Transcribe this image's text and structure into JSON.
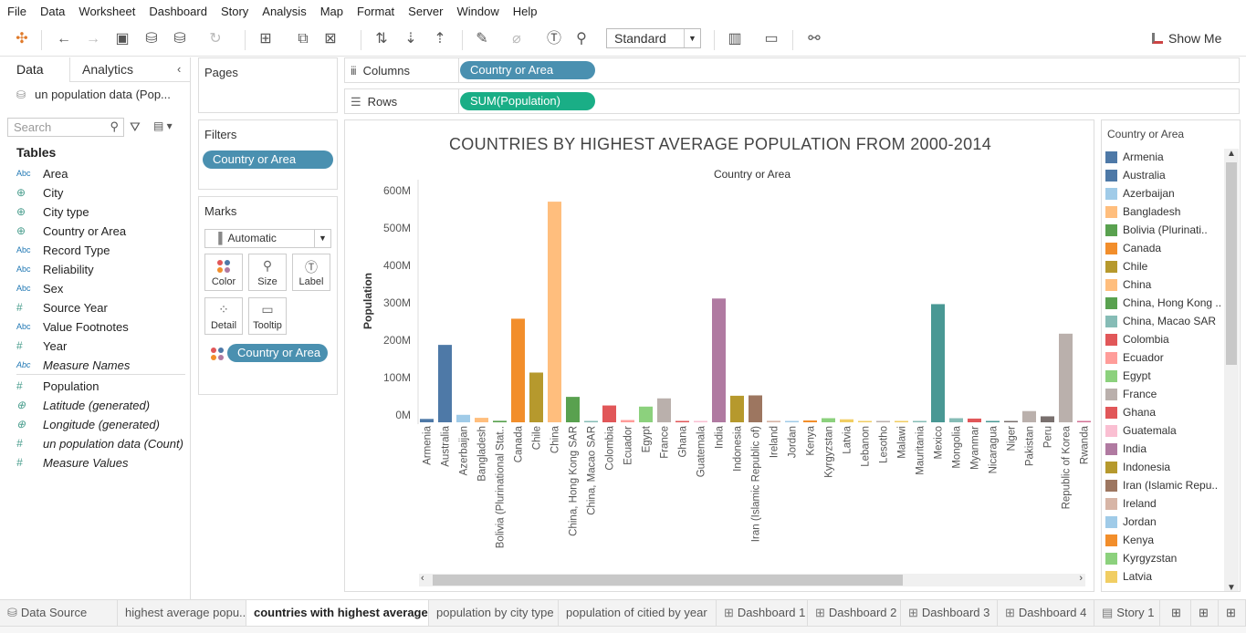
{
  "menu": [
    "File",
    "Data",
    "Worksheet",
    "Dashboard",
    "Story",
    "Analysis",
    "Map",
    "Format",
    "Server",
    "Window",
    "Help"
  ],
  "toolbar": {
    "fit_select": "Standard",
    "show_me": "Show Me"
  },
  "left_pane": {
    "tab_data": "Data",
    "tab_analytics": "Analytics",
    "datasource": "un population data (Pop...",
    "search_placeholder": "Search",
    "tables_heading": "Tables",
    "fields": [
      {
        "name": "Area",
        "type": "Abc"
      },
      {
        "name": "City",
        "type": "geo"
      },
      {
        "name": "City type",
        "type": "geo"
      },
      {
        "name": "Country or Area",
        "type": "geo"
      },
      {
        "name": "Record Type",
        "type": "Abc"
      },
      {
        "name": "Reliability",
        "type": "Abc"
      },
      {
        "name": "Sex",
        "type": "Abc"
      },
      {
        "name": "Source Year",
        "type": "#"
      },
      {
        "name": "Value Footnotes",
        "type": "Abc"
      },
      {
        "name": "Year",
        "type": "#"
      },
      {
        "name": "Measure Names",
        "type": "Abc"
      }
    ],
    "measures": [
      {
        "name": "Population",
        "type": "#"
      },
      {
        "name": "Latitude (generated)",
        "type": "geo"
      },
      {
        "name": "Longitude (generated)",
        "type": "geo"
      },
      {
        "name": "un population data (Count)",
        "type": "#"
      },
      {
        "name": "Measure Values",
        "type": "#"
      }
    ]
  },
  "pages": {
    "title": "Pages"
  },
  "filters": {
    "title": "Filters",
    "pill": "Country or Area"
  },
  "marks": {
    "title": "Marks",
    "type": "Automatic",
    "buttons": [
      "Color",
      "Size",
      "Label",
      "Detail",
      "Tooltip"
    ],
    "color_pill": "Country or Area"
  },
  "shelves": {
    "columns_label": "Columns",
    "columns_pill": "Country or Area",
    "rows_label": "Rows",
    "rows_pill": "SUM(Population)"
  },
  "chart_data": {
    "type": "bar",
    "title": "COUNTRIES BY HIGHEST AVERAGE POPULATION FROM 2000-2014",
    "xlabel": "Country or Area",
    "ylabel": "Population",
    "ylim": [
      0,
      600000000
    ],
    "yticks": [
      "0M",
      "100M",
      "200M",
      "300M",
      "400M",
      "500M",
      "600M"
    ],
    "categories": [
      "Armenia",
      "Australia",
      "Azerbaijan",
      "Bangladesh",
      "Bolivia (Plurinational Stat..",
      "Canada",
      "Chile",
      "China",
      "China, Hong Kong SAR",
      "China, Macao SAR",
      "Colombia",
      "Ecuador",
      "Egypt",
      "France",
      "Ghana",
      "Guatemala",
      "India",
      "Indonesia",
      "Iran (Islamic Republic of)",
      "Ireland",
      "Jordan",
      "Kenya",
      "Kyrgyzstan",
      "Latvia",
      "Lebanon",
      "Lesotho",
      "Malawi",
      "Mauritania",
      "Mexico",
      "Mongolia",
      "Myanmar",
      "Nicaragua",
      "Niger",
      "Pakistan",
      "Peru",
      "Republic of Korea",
      "Rwanda"
    ],
    "values": [
      9000000,
      207000000,
      20000000,
      12000000,
      4000000,
      277000000,
      133000000,
      590000000,
      68000000,
      3000000,
      45000000,
      6000000,
      42000000,
      64000000,
      2000000,
      2000000,
      331000000,
      71000000,
      72000000,
      4000000,
      3000000,
      5000000,
      11000000,
      8000000,
      1000000,
      1000000,
      2000000,
      1000000,
      316000000,
      11000000,
      10000000,
      1000000,
      1000000,
      30000000,
      16000000,
      237000000,
      1000000
    ],
    "colors": [
      "#4e79a7",
      "#4e79a7",
      "#a0cbe8",
      "#ffbe7d",
      "#59a14f",
      "#f28e2b",
      "#b6992d",
      "#ffbe7d",
      "#59a14f",
      "#86bcb6",
      "#e15759",
      "#ff9d9a",
      "#8cd17d",
      "#bab0ac",
      "#e15759",
      "#fabfd2",
      "#b07aa1",
      "#b6992d",
      "#9d7660",
      "#d7b5a6",
      "#a0cbe8",
      "#f28e2b",
      "#8cd17d",
      "#f1ce63",
      "#f1ce63",
      "#bab0ac",
      "#f1ce63",
      "#86bcb6",
      "#499894",
      "#86bcb6",
      "#e15759",
      "#499894",
      "#79706e",
      "#bab0ac",
      "#79706e",
      "#bab0ac",
      "#d37295"
    ]
  },
  "legend": {
    "title": "Country or Area",
    "items": [
      {
        "label": "Armenia",
        "color": "#4e79a7"
      },
      {
        "label": "Australia",
        "color": "#4e79a7"
      },
      {
        "label": "Azerbaijan",
        "color": "#a0cbe8"
      },
      {
        "label": "Bangladesh",
        "color": "#ffbe7d"
      },
      {
        "label": "Bolivia (Plurinati..",
        "color": "#59a14f"
      },
      {
        "label": "Canada",
        "color": "#f28e2b"
      },
      {
        "label": "Chile",
        "color": "#b6992d"
      },
      {
        "label": "China",
        "color": "#ffbe7d"
      },
      {
        "label": "China, Hong Kong ..",
        "color": "#59a14f"
      },
      {
        "label": "China, Macao SAR",
        "color": "#86bcb6"
      },
      {
        "label": "Colombia",
        "color": "#e15759"
      },
      {
        "label": "Ecuador",
        "color": "#ff9d9a"
      },
      {
        "label": "Egypt",
        "color": "#8cd17d"
      },
      {
        "label": "France",
        "color": "#bab0ac"
      },
      {
        "label": "Ghana",
        "color": "#e15759"
      },
      {
        "label": "Guatemala",
        "color": "#fabfd2"
      },
      {
        "label": "India",
        "color": "#b07aa1"
      },
      {
        "label": "Indonesia",
        "color": "#b6992d"
      },
      {
        "label": "Iran (Islamic Repu..",
        "color": "#9d7660"
      },
      {
        "label": "Ireland",
        "color": "#d7b5a6"
      },
      {
        "label": "Jordan",
        "color": "#a0cbe8"
      },
      {
        "label": "Kenya",
        "color": "#f28e2b"
      },
      {
        "label": "Kyrgyzstan",
        "color": "#8cd17d"
      },
      {
        "label": "Latvia",
        "color": "#f1ce63"
      }
    ]
  },
  "sheet_tabs": [
    {
      "label": "Data Source",
      "icon": "datasource-icon",
      "active": false
    },
    {
      "label": "highest average popu...",
      "icon": "",
      "active": false
    },
    {
      "label": "countries with highest average...",
      "icon": "",
      "active": true
    },
    {
      "label": "population by city type",
      "icon": "",
      "active": false
    },
    {
      "label": "population of citied by year",
      "icon": "",
      "active": false
    },
    {
      "label": "Dashboard 1",
      "icon": "dashboard-icon",
      "active": false
    },
    {
      "label": "Dashboard 2",
      "icon": "dashboard-icon",
      "active": false
    },
    {
      "label": "Dashboard 3",
      "icon": "dashboard-icon",
      "active": false
    },
    {
      "label": "Dashboard 4",
      "icon": "dashboard-icon",
      "active": false
    },
    {
      "label": "Story 1",
      "icon": "story-icon",
      "active": false
    }
  ]
}
